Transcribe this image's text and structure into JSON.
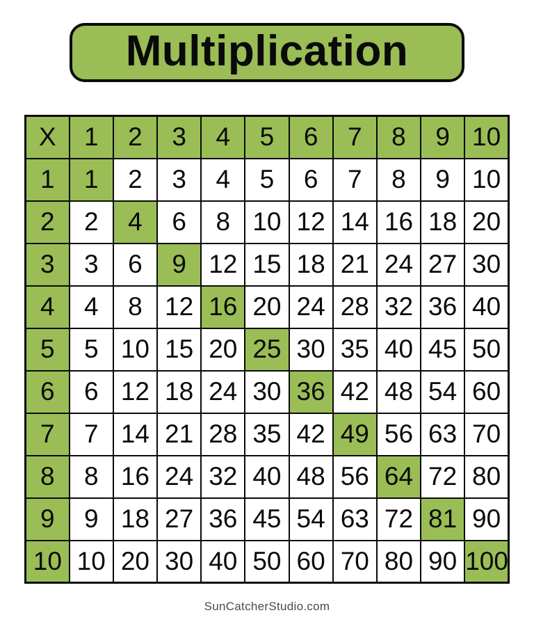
{
  "banner": {
    "title": "Multiplication"
  },
  "chart_data": {
    "type": "table",
    "title": "Multiplication",
    "corner_label": "X",
    "columns": [
      "1",
      "2",
      "3",
      "4",
      "5",
      "6",
      "7",
      "8",
      "9",
      "10"
    ],
    "rows": [
      {
        "header": "1",
        "values": [
          1,
          2,
          3,
          4,
          5,
          6,
          7,
          8,
          9,
          10
        ]
      },
      {
        "header": "2",
        "values": [
          2,
          4,
          6,
          8,
          10,
          12,
          14,
          16,
          18,
          20
        ]
      },
      {
        "header": "3",
        "values": [
          3,
          6,
          9,
          12,
          15,
          18,
          21,
          24,
          27,
          30
        ]
      },
      {
        "header": "4",
        "values": [
          4,
          8,
          12,
          16,
          20,
          24,
          28,
          32,
          36,
          40
        ]
      },
      {
        "header": "5",
        "values": [
          5,
          10,
          15,
          20,
          25,
          30,
          35,
          40,
          45,
          50
        ]
      },
      {
        "header": "6",
        "values": [
          6,
          12,
          18,
          24,
          30,
          36,
          42,
          48,
          54,
          60
        ]
      },
      {
        "header": "7",
        "values": [
          7,
          14,
          21,
          28,
          35,
          42,
          49,
          56,
          63,
          70
        ]
      },
      {
        "header": "8",
        "values": [
          8,
          16,
          24,
          32,
          40,
          48,
          56,
          64,
          72,
          80
        ]
      },
      {
        "header": "9",
        "values": [
          9,
          18,
          27,
          36,
          45,
          54,
          63,
          72,
          81,
          90
        ]
      },
      {
        "header": "10",
        "values": [
          10,
          20,
          30,
          40,
          50,
          60,
          70,
          80,
          90,
          100
        ]
      }
    ],
    "highlight_rule": "header row, header column, and perfect-square diagonal cells are shaded green",
    "layout": {
      "grid": "11x11",
      "grid_lines": true
    }
  },
  "footer": {
    "credit": "SunCatcherStudio.com"
  },
  "colors": {
    "green": "#9ABD55",
    "border": "#0a0a0a",
    "cell_text": "#0a0a0a",
    "background": "#ffffff",
    "footer_text": "#4a4a4a"
  }
}
